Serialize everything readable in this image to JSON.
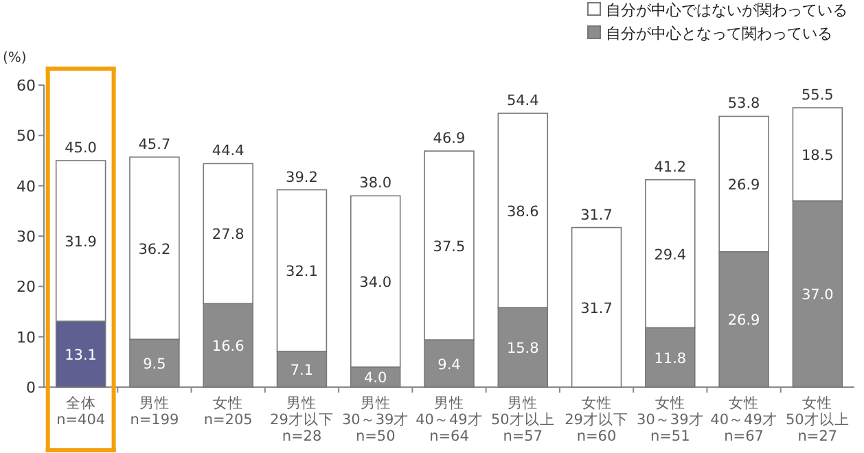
{
  "chart_data": {
    "type": "bar",
    "stacked": true,
    "ylabel": "(%)",
    "ylim": [
      0,
      60
    ],
    "yticks": [
      0,
      10,
      20,
      30,
      40,
      50,
      60
    ],
    "legend": "top right",
    "categories": [
      "全体\nn=404",
      "男性\nn=199",
      "女性\nn=205",
      "男性\n29才以下\nn=28",
      "男性\n30～39才\nn=50",
      "男性\n40～49才\nn=64",
      "男性\n50才以上\nn=57",
      "女性\n29才以下\nn=60",
      "女性\n30～39才\nn=51",
      "女性\n40～49才\nn=67",
      "女性\n50才以上\nn=27"
    ],
    "series": [
      {
        "name": "自分が中心となって関わっている",
        "color": "#8c8c8c",
        "colors": [
          "#5f5f91",
          "#8c8c8c",
          "#8c8c8c",
          "#8c8c8c",
          "#8c8c8c",
          "#8c8c8c",
          "#8c8c8c",
          "#8c8c8c",
          "#8c8c8c",
          "#8c8c8c",
          "#8c8c8c"
        ],
        "values": [
          13.1,
          9.5,
          16.6,
          7.1,
          4.0,
          9.4,
          15.8,
          0,
          11.8,
          26.9,
          37.0
        ],
        "value_labels": [
          "13.1",
          "9.5",
          "16.6",
          "7.1",
          "4.0",
          "9.4",
          "15.8",
          null,
          "11.8",
          "26.9",
          "37.0"
        ]
      },
      {
        "name": "自分が中心ではないが関わっている",
        "color": "#ffffff",
        "values": [
          31.9,
          36.2,
          27.8,
          32.1,
          34.0,
          37.5,
          38.6,
          31.7,
          29.4,
          26.9,
          18.5
        ],
        "value_labels": [
          "31.9",
          "36.2",
          "27.8",
          "32.1",
          "34.0",
          "37.5",
          "38.6",
          "31.7",
          "29.4",
          "26.9",
          "18.5"
        ]
      }
    ],
    "totals": [
      "45.0",
      "45.7",
      "44.4",
      "39.2",
      "38.0",
      "46.9",
      "54.4",
      "31.7",
      "41.2",
      "53.8",
      "55.5"
    ]
  }
}
